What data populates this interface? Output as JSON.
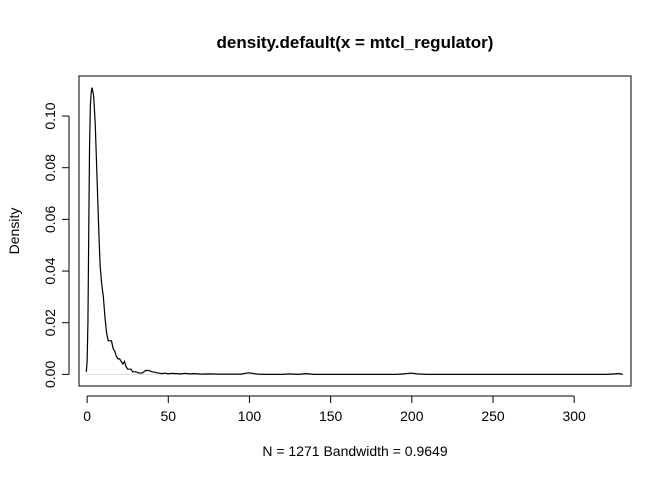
{
  "chart_data": {
    "type": "line",
    "title": "density.default(x = mtcl_regulator)",
    "xlabel": "N = 1271   Bandwidth = 0.9649",
    "ylabel": "Density",
    "xlim": [
      -5,
      335
    ],
    "ylim": [
      -0.0045,
      0.1155
    ],
    "x_ticks": [
      0,
      50,
      100,
      150,
      200,
      250,
      300
    ],
    "y_ticks": [
      0.0,
      0.02,
      0.04,
      0.06,
      0.08,
      0.1
    ],
    "x_tick_labels": [
      "0",
      "50",
      "100",
      "150",
      "200",
      "250",
      "300"
    ],
    "y_tick_labels": [
      "0.00",
      "0.02",
      "0.04",
      "0.06",
      "0.08",
      "0.10"
    ],
    "grid": false,
    "legend": "none",
    "series": [
      {
        "x": [
          -0.5,
          0,
          0.5,
          1,
          1.5,
          2,
          2.5,
          3,
          4,
          5,
          6,
          7,
          8,
          9,
          10,
          11,
          12,
          13,
          14,
          15,
          16,
          17,
          18,
          19,
          20,
          21,
          22,
          23,
          24,
          25,
          26,
          27,
          28,
          30,
          32,
          34,
          36,
          38,
          40,
          42,
          44,
          46,
          48,
          50,
          52,
          55,
          58,
          60,
          63,
          66,
          70,
          75,
          80,
          85,
          90,
          95,
          98,
          100,
          105,
          110,
          120,
          125,
          130,
          135,
          140,
          150,
          170,
          190,
          195,
          198,
          200,
          203,
          210,
          250,
          300,
          320,
          325,
          328,
          330
        ],
        "y": [
          0.001,
          0.005,
          0.02,
          0.055,
          0.088,
          0.104,
          0.109,
          0.111,
          0.108,
          0.097,
          0.078,
          0.059,
          0.042,
          0.035,
          0.03,
          0.022,
          0.016,
          0.013,
          0.013,
          0.013,
          0.01,
          0.009,
          0.007,
          0.006,
          0.006,
          0.005,
          0.004,
          0.005,
          0.003,
          0.002,
          0.002,
          0.002,
          0.001,
          0.001,
          0.0005,
          0.0005,
          0.0015,
          0.0015,
          0.001,
          0.0008,
          0.0005,
          0.0003,
          0.0005,
          0.0002,
          0.0004,
          0.0003,
          0.0002,
          0.0004,
          0.0002,
          0.0003,
          0.0001,
          0.0002,
          0.0001,
          0.0001,
          0.0001,
          0.0001,
          0.0005,
          0.0006,
          0.0001,
          0.0,
          0.0,
          0.0002,
          0.0,
          0.0003,
          0.0,
          0.0,
          0.0,
          0.0,
          0.0002,
          0.0004,
          0.0005,
          0.0002,
          0.0,
          0.0,
          0.0,
          0.0,
          0.0002,
          0.0003,
          0.0
        ]
      }
    ]
  }
}
